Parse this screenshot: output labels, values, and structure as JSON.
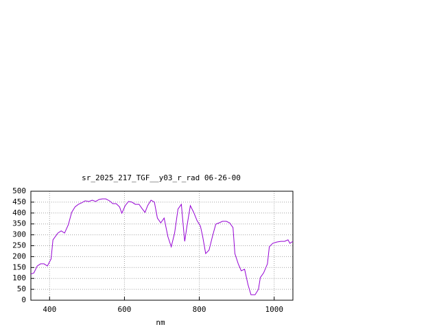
{
  "chart_data": {
    "type": "line",
    "title": "sr_2025_217_TGF__y03_r_rad 06-26-00",
    "x_label": "nm",
    "xlim": [
      350,
      1050
    ],
    "xticks": [
      400,
      600,
      800,
      1000
    ],
    "ylim": [
      0,
      500
    ],
    "yticks": [
      0,
      50,
      100,
      150,
      200,
      250,
      300,
      350,
      400,
      450,
      500
    ],
    "grid": true,
    "series": [
      {
        "color": "#9400d3",
        "x": [
          350,
          358,
          367,
          376,
          385,
          394,
          404,
          409,
          422,
          431,
          440,
          450,
          459,
          468,
          477,
          486,
          495,
          505,
          514,
          523,
          532,
          541,
          550,
          560,
          569,
          578,
          587,
          593,
          602,
          611,
          620,
          629,
          639,
          648,
          655,
          662,
          671,
          680,
          688,
          697,
          706,
          716,
          725,
          734,
          743,
          752,
          758,
          761,
          767,
          776,
          785,
          794,
          803,
          809,
          817,
          826,
          835,
          844,
          853,
          862,
          872,
          881,
          890,
          895,
          904,
          912,
          921,
          930,
          938,
          949,
          958,
          963,
          972,
          982,
          987,
          996,
          1007,
          1018,
          1028,
          1037,
          1042,
          1050
        ],
        "values": [
          120,
          125,
          157,
          167,
          167,
          157,
          189,
          277,
          308,
          318,
          308,
          346,
          403,
          428,
          440,
          447,
          456,
          453,
          459,
          453,
          462,
          465,
          465,
          456,
          443,
          443,
          428,
          399,
          434,
          453,
          450,
          440,
          440,
          418,
          403,
          434,
          459,
          450,
          377,
          355,
          377,
          292,
          245,
          308,
          418,
          440,
          324,
          270,
          340,
          434,
          403,
          365,
          340,
          292,
          214,
          230,
          292,
          349,
          355,
          362,
          362,
          355,
          333,
          214,
          167,
          135,
          142,
          72,
          25,
          25,
          50,
          104,
          126,
          167,
          245,
          261,
          267,
          270,
          270,
          277,
          261,
          270
        ]
      }
    ]
  }
}
